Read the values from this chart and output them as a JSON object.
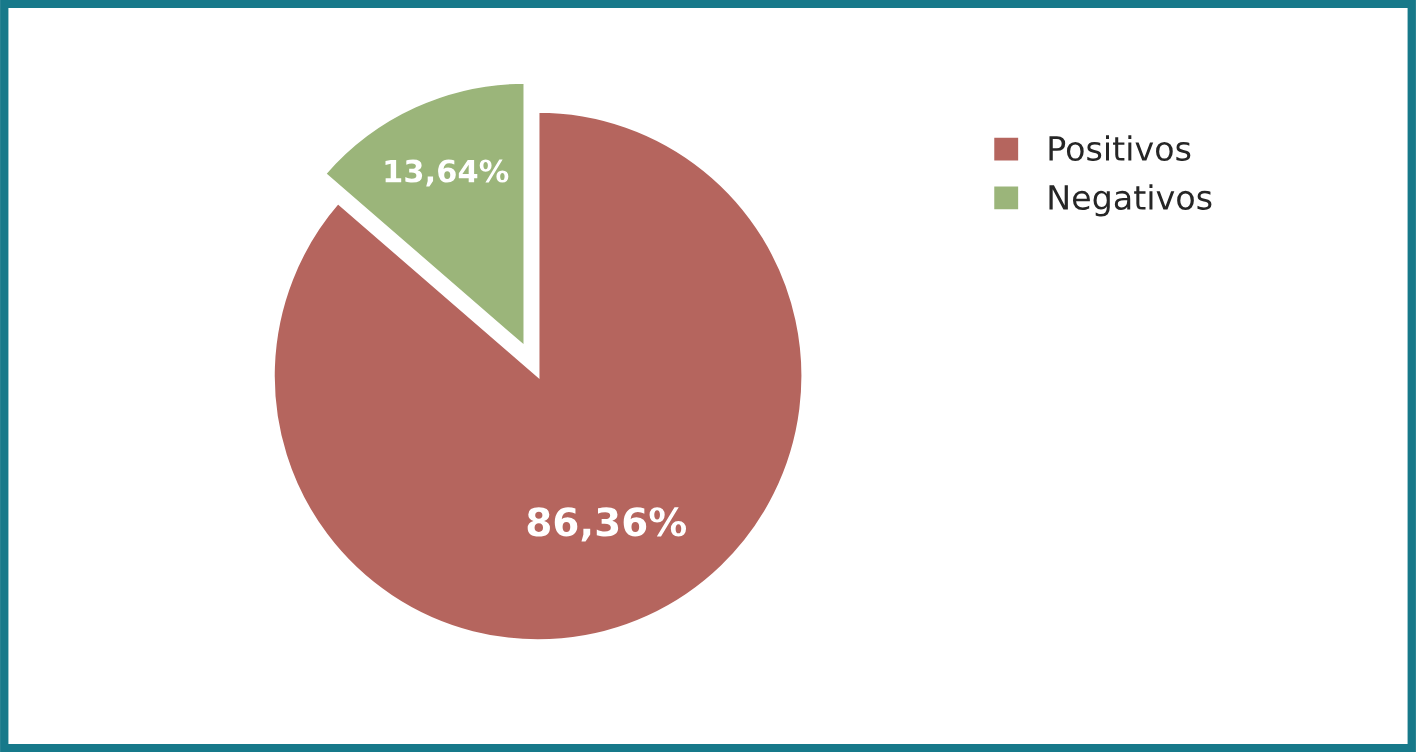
{
  "chart_data": {
    "type": "pie",
    "categories": [
      "Positivos",
      "Negativos"
    ],
    "values": [
      86.36,
      13.64
    ],
    "colors": [
      "#b5655e",
      "#9bb57a"
    ],
    "value_labels": [
      "86,36%",
      "13,64%"
    ],
    "legend": "top right"
  }
}
